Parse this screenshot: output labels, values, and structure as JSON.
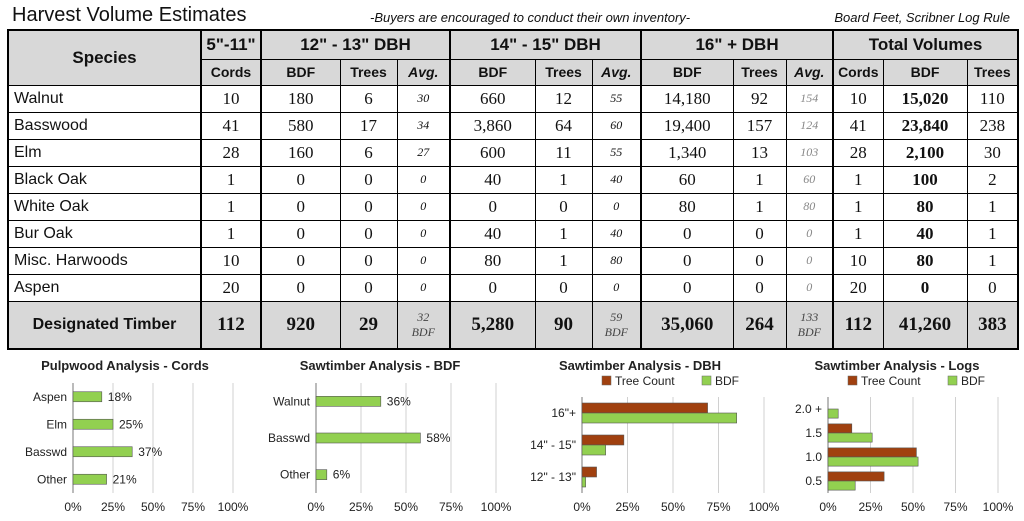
{
  "header": {
    "title": "Harvest Volume Estimates",
    "note": "-Buyers are encouraged to conduct their own inventory-",
    "unit": "Board Feet, Scribner Log Rule"
  },
  "table": {
    "species_header": "Species",
    "groups": [
      "5\"-11\"",
      "12\" - 13\"  DBH",
      "14\" - 15\"  DBH",
      "16\" + DBH",
      "Total Volumes"
    ],
    "subheaders": [
      "Cords",
      "BDF",
      "Trees",
      "Avg.",
      "BDF",
      "Trees",
      "Avg.",
      "BDF",
      "Trees",
      "Avg.",
      "Cords",
      "BDF",
      "Trees"
    ],
    "rows": [
      [
        "Walnut",
        "10",
        "180",
        "6",
        "30",
        "660",
        "12",
        "55",
        "14,180",
        "92",
        "154",
        "10",
        "15,020",
        "110"
      ],
      [
        "Basswood",
        "41",
        "580",
        "17",
        "34",
        "3,860",
        "64",
        "60",
        "19,400",
        "157",
        "124",
        "41",
        "23,840",
        "238"
      ],
      [
        "Elm",
        "28",
        "160",
        "6",
        "27",
        "600",
        "11",
        "55",
        "1,340",
        "13",
        "103",
        "28",
        "2,100",
        "30"
      ],
      [
        "Black Oak",
        "1",
        "0",
        "0",
        "0",
        "40",
        "1",
        "40",
        "60",
        "1",
        "60",
        "1",
        "100",
        "2"
      ],
      [
        "White Oak",
        "1",
        "0",
        "0",
        "0",
        "0",
        "0",
        "0",
        "80",
        "1",
        "80",
        "1",
        "80",
        "1"
      ],
      [
        "Bur Oak",
        "1",
        "0",
        "0",
        "0",
        "40",
        "1",
        "40",
        "0",
        "0",
        "0",
        "1",
        "40",
        "1"
      ],
      [
        "Misc. Harwoods",
        "10",
        "0",
        "0",
        "0",
        "80",
        "1",
        "80",
        "0",
        "0",
        "0",
        "10",
        "80",
        "1"
      ],
      [
        "Aspen",
        "20",
        "0",
        "0",
        "0",
        "0",
        "0",
        "0",
        "0",
        "0",
        "0",
        "20",
        "0",
        "0"
      ]
    ],
    "total": {
      "label": "Designated Timber",
      "cords": "112",
      "bdf_12": "920",
      "trees_12": "29",
      "avg_12": "32",
      "avg_12_unit": "BDF",
      "bdf_14": "5,280",
      "trees_14": "90",
      "avg_14": "59",
      "avg_14_unit": "BDF",
      "bdf_16": "35,060",
      "trees_16": "264",
      "avg_16": "133",
      "avg_16_unit": "BDF",
      "tot_cords": "112",
      "tot_bdf": "41,260",
      "tot_trees": "383"
    }
  },
  "colors": {
    "green": "#92d050",
    "brown": "#a0400f",
    "header_gray": "#d8d8d8",
    "grid": "#d0d0d0"
  },
  "chart_data": [
    {
      "type": "bar",
      "orientation": "horizontal",
      "title": "Pulpwood Analysis - Cords",
      "categories": [
        "Aspen",
        "Elm",
        "Basswd",
        "Other"
      ],
      "values": [
        18,
        25,
        37,
        21
      ],
      "data_labels": [
        "18%",
        "25%",
        "37%",
        "21%"
      ],
      "xlim": [
        0,
        100
      ],
      "xticks": [
        "0%",
        "25%",
        "50%",
        "75%",
        "100%"
      ],
      "grid": true
    },
    {
      "type": "bar",
      "orientation": "horizontal",
      "title": "Sawtimber Analysis - BDF",
      "categories": [
        "Walnut",
        "Basswd",
        "Other"
      ],
      "values": [
        36,
        58,
        6
      ],
      "data_labels": [
        "36%",
        "58%",
        "6%"
      ],
      "xlim": [
        0,
        100
      ],
      "xticks": [
        "0%",
        "25%",
        "50%",
        "75%",
        "100%"
      ],
      "grid": true
    },
    {
      "type": "bar",
      "orientation": "horizontal",
      "title": "Sawtimber Analysis - DBH",
      "categories": [
        "16\"+",
        "14\" - 15\"",
        "12\" - 13\""
      ],
      "series": [
        {
          "name": "Tree Count",
          "values": [
            69,
            23,
            8
          ]
        },
        {
          "name": "BDF",
          "values": [
            85,
            13,
            2
          ]
        }
      ],
      "legend": "top",
      "xlim": [
        0,
        100
      ],
      "xticks": [
        "0%",
        "25%",
        "50%",
        "75%",
        "100%"
      ],
      "grid": true
    },
    {
      "type": "bar",
      "orientation": "horizontal",
      "title": "Sawtimber Analysis - Logs",
      "categories": [
        "2.0 +",
        "1.5",
        "1.0",
        "0.5"
      ],
      "series": [
        {
          "name": "Tree Count",
          "values": [
            0,
            14,
            52,
            33
          ]
        },
        {
          "name": "BDF",
          "values": [
            6,
            26,
            53,
            16
          ]
        }
      ],
      "legend": "top",
      "xlim": [
        0,
        100
      ],
      "xticks": [
        "0%",
        "25%",
        "50%",
        "75%",
        "100%"
      ],
      "grid": true
    }
  ]
}
